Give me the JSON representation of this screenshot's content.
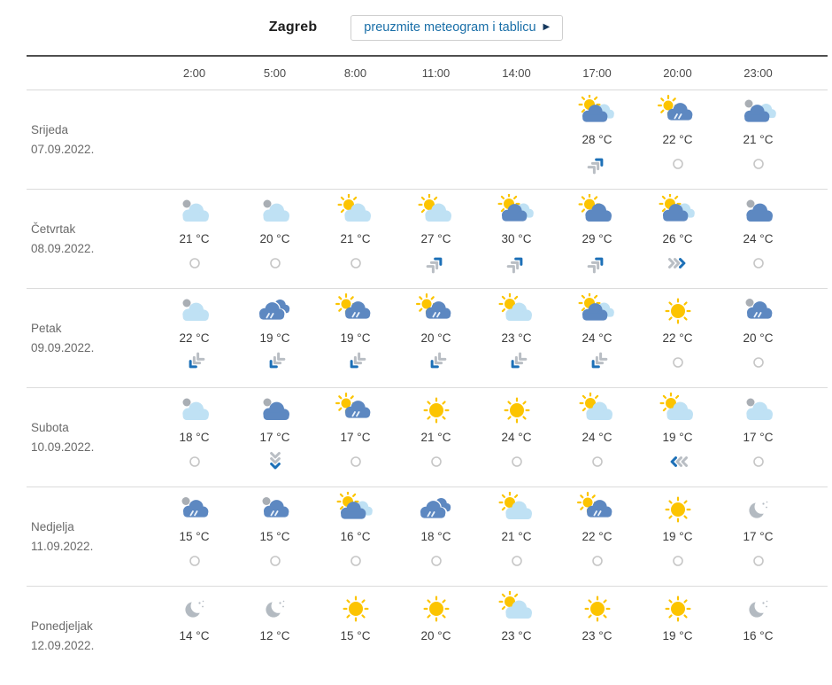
{
  "header": {
    "city": "Zagreb",
    "download_button_label": "preuzmite meteogram i tablicu",
    "download_button_arrow": "▶"
  },
  "colors": {
    "link_blue": "#1a6fa8",
    "wind_blue": "#1d70b7",
    "wind_gray": "#b9bec4",
    "cloud_blue": "#5d88c1",
    "cloud_light": "#bfe1f4",
    "cloud_gray": "#a9aeb4",
    "sun_yellow": "#fcc400"
  },
  "table": {
    "times": [
      "2:00",
      "5:00",
      "8:00",
      "11:00",
      "14:00",
      "17:00",
      "20:00",
      "23:00"
    ],
    "days": [
      {
        "name": "Srijeda",
        "date": "07.09.2022.",
        "cells": [
          {
            "icon": null,
            "temp": null,
            "wind": null
          },
          {
            "icon": null,
            "temp": null,
            "wind": null
          },
          {
            "icon": null,
            "temp": null,
            "wind": null
          },
          {
            "icon": null,
            "temp": null,
            "wind": null
          },
          {
            "icon": null,
            "temp": null,
            "wind": null
          },
          {
            "icon": "partly-sunny-two-clouds",
            "temp": "28 °C",
            "wind": "NE"
          },
          {
            "icon": "sun-rain-cloud",
            "temp": "22 °C",
            "wind": "calm"
          },
          {
            "icon": "night-two-clouds",
            "temp": "21 °C",
            "wind": "calm"
          }
        ]
      },
      {
        "name": "Četvrtak",
        "date": "08.09.2022.",
        "cells": [
          {
            "icon": "night-light-cloud",
            "temp": "21 °C",
            "wind": "calm"
          },
          {
            "icon": "night-light-cloud",
            "temp": "20 °C",
            "wind": "calm"
          },
          {
            "icon": "partly-sunny-light",
            "temp": "21 °C",
            "wind": "calm"
          },
          {
            "icon": "partly-sunny-light",
            "temp": "27 °C",
            "wind": "NE"
          },
          {
            "icon": "partly-sunny-two-clouds",
            "temp": "30 °C",
            "wind": "NE"
          },
          {
            "icon": "partly-sunny-blue",
            "temp": "29 °C",
            "wind": "NE"
          },
          {
            "icon": "partly-sunny-two-clouds",
            "temp": "26 °C",
            "wind": "E"
          },
          {
            "icon": "night-blue-cloud",
            "temp": "24 °C",
            "wind": "calm"
          }
        ]
      },
      {
        "name": "Petak",
        "date": "09.09.2022.",
        "cells": [
          {
            "icon": "night-light-cloud",
            "temp": "22 °C",
            "wind": "SW"
          },
          {
            "icon": "rain-two-clouds",
            "temp": "19 °C",
            "wind": "SW"
          },
          {
            "icon": "sun-rain-cloud",
            "temp": "19 °C",
            "wind": "SW"
          },
          {
            "icon": "sun-rain-cloud",
            "temp": "20 °C",
            "wind": "SW"
          },
          {
            "icon": "partly-sunny-light",
            "temp": "23 °C",
            "wind": "SW"
          },
          {
            "icon": "partly-sunny-two-clouds",
            "temp": "24 °C",
            "wind": "SW"
          },
          {
            "icon": "sunny",
            "temp": "22 °C",
            "wind": "calm"
          },
          {
            "icon": "night-rain-cloud",
            "temp": "20 °C",
            "wind": "calm"
          }
        ]
      },
      {
        "name": "Subota",
        "date": "10.09.2022.",
        "cells": [
          {
            "icon": "night-light-cloud",
            "temp": "18 °C",
            "wind": "calm"
          },
          {
            "icon": "night-blue-cloud",
            "temp": "17 °C",
            "wind": "S"
          },
          {
            "icon": "sun-rain-cloud",
            "temp": "17 °C",
            "wind": "calm"
          },
          {
            "icon": "sunny",
            "temp": "21 °C",
            "wind": "calm"
          },
          {
            "icon": "sunny",
            "temp": "24 °C",
            "wind": "calm"
          },
          {
            "icon": "partly-sunny-light",
            "temp": "24 °C",
            "wind": "calm"
          },
          {
            "icon": "partly-sunny-light",
            "temp": "19 °C",
            "wind": "W"
          },
          {
            "icon": "night-light-cloud",
            "temp": "17 °C",
            "wind": "calm"
          }
        ]
      },
      {
        "name": "Nedjelja",
        "date": "11.09.2022.",
        "cells": [
          {
            "icon": "night-rain-cloud",
            "temp": "15 °C",
            "wind": "calm"
          },
          {
            "icon": "night-rain-cloud",
            "temp": "15 °C",
            "wind": "calm"
          },
          {
            "icon": "partly-sunny-two-clouds",
            "temp": "16 °C",
            "wind": "calm"
          },
          {
            "icon": "rain-two-clouds",
            "temp": "18 °C",
            "wind": "calm"
          },
          {
            "icon": "partly-sunny-light",
            "temp": "21 °C",
            "wind": "calm"
          },
          {
            "icon": "sun-rain-cloud",
            "temp": "22 °C",
            "wind": "calm"
          },
          {
            "icon": "sunny",
            "temp": "19 °C",
            "wind": "calm"
          },
          {
            "icon": "clear-night",
            "temp": "17 °C",
            "wind": "calm"
          }
        ]
      },
      {
        "name": "Ponedjeljak",
        "date": "12.09.2022.",
        "cells": [
          {
            "icon": "clear-night",
            "temp": "14 °C",
            "wind": null
          },
          {
            "icon": "clear-night",
            "temp": "12 °C",
            "wind": null
          },
          {
            "icon": "sunny",
            "temp": "15 °C",
            "wind": null
          },
          {
            "icon": "sunny",
            "temp": "20 °C",
            "wind": null
          },
          {
            "icon": "partly-sunny-light",
            "temp": "23 °C",
            "wind": null
          },
          {
            "icon": "sunny",
            "temp": "23 °C",
            "wind": null
          },
          {
            "icon": "sunny",
            "temp": "19 °C",
            "wind": null
          },
          {
            "icon": "clear-night",
            "temp": "16 °C",
            "wind": null
          }
        ]
      }
    ]
  }
}
